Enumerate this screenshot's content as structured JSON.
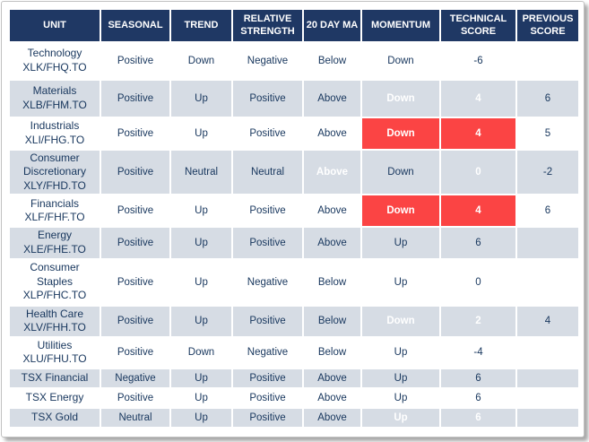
{
  "colors": {
    "header_bg": "#1F3864",
    "alt_row_bg": "#D6DCE4",
    "negative_bg": "#FB4444",
    "positive_bg": "#92D050",
    "text": "#17365D"
  },
  "chart_data": {
    "type": "table",
    "columns": [
      "UNIT",
      "SEASONAL",
      "TREND",
      "RELATIVE STRENGTH",
      "20 DAY MA",
      "MOMENTUM",
      "TECHNICAL SCORE",
      "PREVIOUS SCORE"
    ],
    "rows": [
      {
        "unit_name": "Technology",
        "unit_ticker": "XLK/FHQ.TO",
        "seasonal": "Positive",
        "trend": "Down",
        "relative_strength": "Negative",
        "ma_20day": "Below",
        "momentum": "Down",
        "technical_score": "-6",
        "previous_score": ""
      },
      {
        "unit_name": "Materials",
        "unit_ticker": "XLB/FHM.TO",
        "seasonal": "Positive",
        "trend": "Up",
        "relative_strength": "Positive",
        "ma_20day": "Above",
        "momentum": "Down",
        "momentum_highlight": "negative",
        "technical_score": "4",
        "technical_score_highlight": "negative",
        "previous_score": "6"
      },
      {
        "unit_name": "Industrials",
        "unit_ticker": "XLI/FHG.TO",
        "seasonal": "Positive",
        "trend": "Up",
        "relative_strength": "Positive",
        "ma_20day": "Above",
        "momentum": "Down",
        "momentum_highlight": "negative",
        "technical_score": "4",
        "technical_score_highlight": "negative",
        "previous_score": "5"
      },
      {
        "unit_name": "Consumer Discretionary",
        "unit_ticker": "XLY/FHD.TO",
        "seasonal": "Positive",
        "trend": "Neutral",
        "relative_strength": "Neutral",
        "ma_20day": "Above",
        "ma_20day_highlight": "positive",
        "momentum": "Down",
        "technical_score": "0",
        "technical_score_highlight": "positive",
        "previous_score": "-2"
      },
      {
        "unit_name": "Financials",
        "unit_ticker": "XLF/FHF.TO",
        "seasonal": "Positive",
        "trend": "Up",
        "relative_strength": "Positive",
        "ma_20day": "Above",
        "momentum": "Down",
        "momentum_highlight": "negative",
        "technical_score": "4",
        "technical_score_highlight": "negative",
        "previous_score": "6"
      },
      {
        "unit_name": "Energy",
        "unit_ticker": "XLE/FHE.TO",
        "seasonal": "Positive",
        "trend": "Up",
        "relative_strength": "Positive",
        "ma_20day": "Above",
        "momentum": "Up",
        "technical_score": "6",
        "previous_score": ""
      },
      {
        "unit_name": "Consumer Staples",
        "unit_ticker": "XLP/FHC.TO",
        "seasonal": "Positive",
        "trend": "Up",
        "relative_strength": "Negative",
        "ma_20day": "Below",
        "momentum": "Up",
        "technical_score": "0",
        "previous_score": ""
      },
      {
        "unit_name": "Health Care",
        "unit_ticker": "XLV/FHH.TO",
        "seasonal": "Positive",
        "trend": "Up",
        "relative_strength": "Positive",
        "ma_20day": "Below",
        "momentum": "Down",
        "momentum_highlight": "negative",
        "technical_score": "2",
        "technical_score_highlight": "negative",
        "previous_score": "4"
      },
      {
        "unit_name": "Utilities",
        "unit_ticker": "XLU/FHU.TO",
        "seasonal": "Positive",
        "trend": "Down",
        "relative_strength": "Negative",
        "ma_20day": "Below",
        "momentum": "Up",
        "technical_score": "-4",
        "previous_score": ""
      },
      {
        "unit_name": "TSX Financial",
        "unit_ticker": "",
        "seasonal": "Negative",
        "trend": "Up",
        "relative_strength": "Positive",
        "ma_20day": "Above",
        "momentum": "Up",
        "technical_score": "6",
        "previous_score": ""
      },
      {
        "unit_name": "TSX Energy",
        "unit_ticker": "",
        "seasonal": "Positive",
        "trend": "Up",
        "relative_strength": "Positive",
        "ma_20day": "Above",
        "momentum": "Up",
        "technical_score": "6",
        "previous_score": ""
      },
      {
        "unit_name": "TSX Gold",
        "unit_ticker": "",
        "seasonal": "Neutral",
        "trend": "Up",
        "relative_strength": "Positive",
        "ma_20day": "Above",
        "momentum": "Up",
        "momentum_highlight": "positive",
        "technical_score": "6",
        "technical_score_highlight": "positive",
        "previous_score": ""
      }
    ]
  }
}
